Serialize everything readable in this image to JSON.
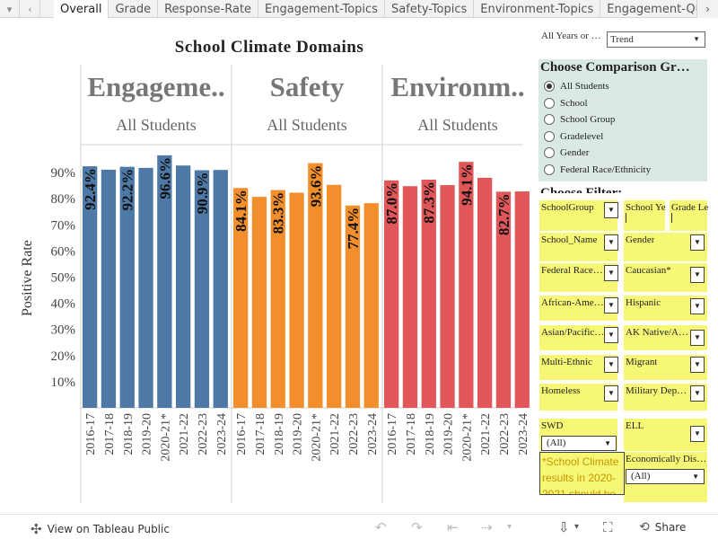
{
  "tabs": [
    {
      "label": "Overall",
      "active": true
    },
    {
      "label": "Grade"
    },
    {
      "label": "Response-Rate"
    },
    {
      "label": "Engagement-Topics"
    },
    {
      "label": "Safety-Topics"
    },
    {
      "label": "Environment-Topics"
    },
    {
      "label": "Engagement-Que"
    }
  ],
  "icons": {
    "menu": "chevron-down-icon",
    "back": "chevron-left-icon",
    "tabs_next": "chevron-right-icon"
  },
  "chart_data": {
    "type": "bar",
    "title": "School Climate Domains",
    "ylabel": "Positive Rate",
    "ylim": [
      0,
      100
    ],
    "yticks": [
      "10%",
      "20%",
      "30%",
      "40%",
      "50%",
      "60%",
      "70%",
      "80%",
      "90%"
    ],
    "categories": [
      "2016-17",
      "2017-18",
      "2018-19",
      "2019-20",
      "2020-21*",
      "2021-22",
      "2022-23",
      "2023-24"
    ],
    "panels": [
      {
        "header": "Engageme..",
        "subheader": "All Students",
        "color": "#4e79a7",
        "values": [
          92.4,
          91.1,
          92.2,
          91.8,
          96.6,
          92.7,
          90.9,
          91.0
        ],
        "labels": [
          "92.4%",
          "",
          "92.2%",
          "",
          "96.6%",
          "",
          "90.9%",
          ""
        ]
      },
      {
        "header": "Safety",
        "subheader": "All Students",
        "color": "#f28e2b",
        "values": [
          84.1,
          80.7,
          83.3,
          82.3,
          93.6,
          85.3,
          77.4,
          78.3
        ],
        "labels": [
          "84.1%",
          "",
          "83.3%",
          "",
          "93.6%",
          "",
          "77.4%",
          ""
        ]
      },
      {
        "header": "Environm..",
        "subheader": "All Students",
        "color": "#e15759",
        "values": [
          87.0,
          84.8,
          87.3,
          85.2,
          94.1,
          88.0,
          82.7,
          82.8
        ],
        "labels": [
          "87.0%",
          "",
          "87.3%",
          "",
          "94.1%",
          "",
          "82.7%",
          ""
        ]
      }
    ]
  },
  "controls": {
    "years_label": "All Years or …",
    "view_select": "Trend",
    "comparison_title": "Choose Comparison Gr…",
    "comparison_options": [
      "All Students",
      "School",
      "School Group",
      "Gradelevel",
      "Gender",
      "Federal Race/Ethnicity"
    ],
    "comparison_selected": 0,
    "filter_title": "Choose Filter:",
    "filters": {
      "schoolgroup": "SchoolGroup",
      "school_year": "School Ye",
      "grade_level": "Grade Le",
      "school_name": "School_Name",
      "gender": "Gender",
      "federal_race": "Federal Race…",
      "caucasian": "Caucasian*",
      "african_american": "African-Ame…",
      "hispanic": "Hispanic",
      "asian_pacific": "Asian/Pacific…",
      "ak_native": "AK Native/A…",
      "multi_ethnic": "Multi-Ethnic",
      "migrant": "Migrant",
      "homeless": "Homeless",
      "military": "Military Dep…",
      "swd": "SWD",
      "swd_value": "(All)",
      "ell": "ELL",
      "econ": "Economically Dis…",
      "econ_value": "(All)"
    },
    "note": "*School Climate results in 2020-2021 should be"
  },
  "footer": {
    "view_label": "View on Tableau Public",
    "share_label": "Share"
  }
}
